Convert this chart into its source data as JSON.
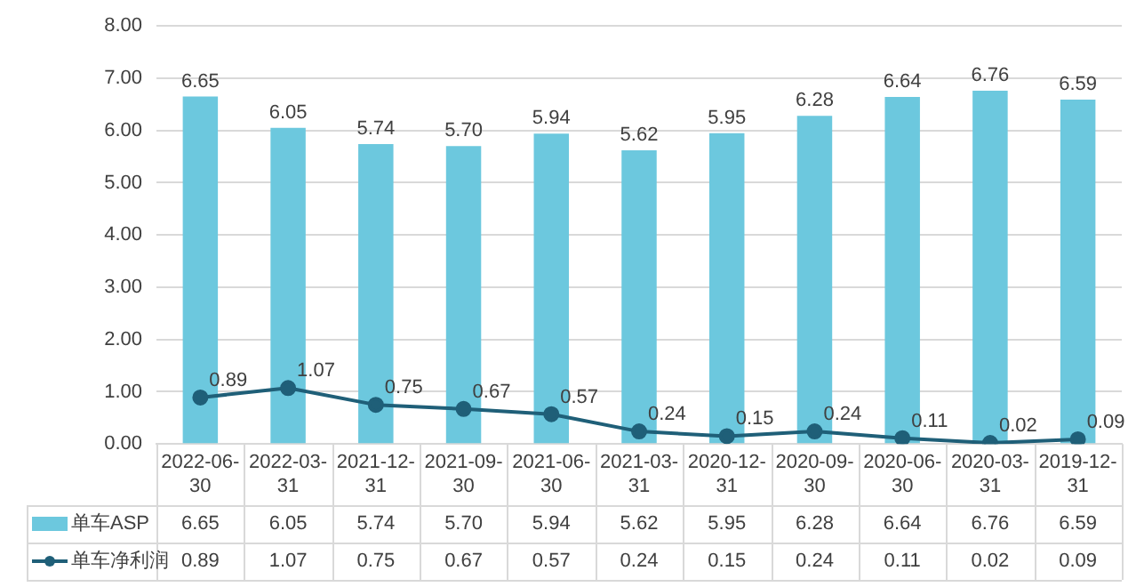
{
  "chart_data": {
    "type": "bar",
    "categories": [
      "2022-06-30",
      "2022-03-31",
      "2021-12-31",
      "2021-09-30",
      "2021-06-30",
      "2021-03-31",
      "2020-12-31",
      "2020-09-30",
      "2020-06-30",
      "2020-03-31",
      "2019-12-31"
    ],
    "series": [
      {
        "name": "单车ASP",
        "color": "#6cc8de",
        "values": [
          6.65,
          6.05,
          5.74,
          5.7,
          5.94,
          5.62,
          5.95,
          6.28,
          6.64,
          6.76,
          6.59
        ],
        "value_labels": [
          "6.65",
          "6.05",
          "5.74",
          "5.70",
          "5.94",
          "5.62",
          "5.95",
          "6.28",
          "6.64",
          "6.76",
          "6.59"
        ]
      },
      {
        "name": "单车净利润",
        "type": "line",
        "color": "#1f5f78",
        "values": [
          0.89,
          1.07,
          0.75,
          0.67,
          0.57,
          0.24,
          0.15,
          0.24,
          0.11,
          0.02,
          0.09
        ],
        "value_labels": [
          "0.89",
          "1.07",
          "0.75",
          "0.67",
          "0.57",
          "0.24",
          "0.15",
          "0.24",
          "0.11",
          "0.02",
          "0.09"
        ]
      }
    ],
    "ylim": [
      0,
      8
    ],
    "yticks": [
      {
        "value": 0,
        "label": "0.00"
      },
      {
        "value": 1,
        "label": "1.00"
      },
      {
        "value": 2,
        "label": "2.00"
      },
      {
        "value": 3,
        "label": "3.00"
      },
      {
        "value": 4,
        "label": "4.00"
      },
      {
        "value": 5,
        "label": "5.00"
      },
      {
        "value": 6,
        "label": "6.00"
      },
      {
        "value": 7,
        "label": "7.00"
      },
      {
        "value": 8,
        "label": "8.00"
      }
    ],
    "grid": "y",
    "legend": "bottom",
    "marker": "circle"
  }
}
